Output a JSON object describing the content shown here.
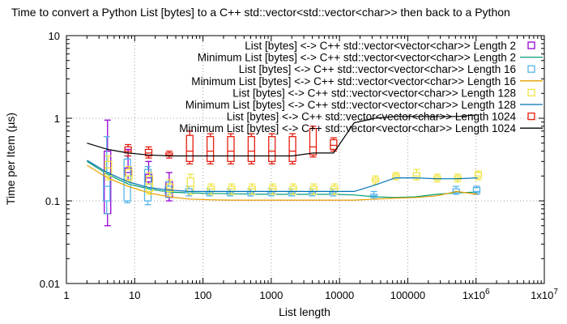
{
  "chart_data": {
    "type": "line",
    "title": "Time to convert a Python List [bytes] to a C++ std::vector<std::vector<char>> then back to a Python",
    "xlabel": "List length",
    "ylabel": "Time per Item (µs)",
    "xscale": "log",
    "yscale": "log",
    "xlim": [
      1,
      10000000
    ],
    "ylim": [
      0.01,
      10
    ],
    "x_ticks": [
      {
        "value": 1,
        "label": "1"
      },
      {
        "value": 10,
        "label": "10"
      },
      {
        "value": 100,
        "label": "100"
      },
      {
        "value": 1000,
        "label": "1000"
      },
      {
        "value": 10000,
        "label": "10000"
      },
      {
        "value": 100000,
        "label": "100000"
      },
      {
        "value": 1000000,
        "label": "1x10^6",
        "base": "1x10",
        "exp": "6"
      },
      {
        "value": 10000000,
        "label": "1x10^7",
        "base": "1x10",
        "exp": "7"
      }
    ],
    "y_ticks": [
      {
        "value": 0.01,
        "label": "0.01"
      },
      {
        "value": 0.1,
        "label": "0.1"
      },
      {
        "value": 1,
        "label": "1"
      },
      {
        "value": 10,
        "label": "10"
      }
    ],
    "grid": true,
    "legend_position": "top-right",
    "series": [
      {
        "name": "List [bytes] <-> C++ std::vector<vector<char>> Length 2",
        "kind": "box",
        "color": "#9400d3",
        "x": [
          4,
          8,
          16,
          32
        ],
        "q1": [
          0.07,
          0.2,
          0.17,
          0.11
        ],
        "q3": [
          0.4,
          0.25,
          0.21,
          0.17
        ],
        "low": [
          0.05,
          0.18,
          0.16,
          0.1
        ],
        "high": [
          0.95,
          0.42,
          0.3,
          0.22
        ],
        "median": [
          0.25,
          0.22,
          0.19,
          0.14
        ]
      },
      {
        "name": "Minimum List [bytes] <-> C++ std::vector<vector<char>> Length 2",
        "kind": "line",
        "color": "#009e73",
        "x": [
          2,
          4,
          8,
          16,
          32,
          64,
          128,
          256,
          512,
          1024,
          2048,
          4096,
          8192,
          16384,
          32768,
          65536,
          131072,
          262144,
          524288,
          1048576
        ],
        "y": [
          0.3,
          0.21,
          0.16,
          0.14,
          0.128,
          0.125,
          0.123,
          0.122,
          0.121,
          0.12,
          0.12,
          0.12,
          0.12,
          0.118,
          0.112,
          0.11,
          0.112,
          0.12,
          0.125,
          0.128
        ]
      },
      {
        "name": "List [bytes] <-> C++ std::vector<vector<char>> Length 16",
        "kind": "box",
        "color": "#56b4e9",
        "x": [
          4,
          8,
          16,
          32,
          64,
          128,
          256,
          512,
          1024,
          2048,
          4096,
          8192,
          32768,
          524288,
          1048576
        ],
        "q1": [
          0.1,
          0.1,
          0.1,
          0.12,
          0.125,
          0.12,
          0.12,
          0.12,
          0.12,
          0.12,
          0.12,
          0.12,
          0.11,
          0.125,
          0.125
        ],
        "q3": [
          0.22,
          0.32,
          0.24,
          0.15,
          0.14,
          0.13,
          0.13,
          0.13,
          0.13,
          0.13,
          0.13,
          0.13,
          0.12,
          0.14,
          0.145
        ],
        "low": [
          0.07,
          0.095,
          0.09,
          0.11,
          0.115,
          0.115,
          0.115,
          0.115,
          0.115,
          0.115,
          0.115,
          0.115,
          0.105,
          0.12,
          0.12
        ],
        "high": [
          0.6,
          0.35,
          0.26,
          0.17,
          0.15,
          0.14,
          0.14,
          0.14,
          0.14,
          0.14,
          0.14,
          0.14,
          0.13,
          0.15,
          0.15
        ],
        "median": [
          0.15,
          0.2,
          0.16,
          0.135,
          0.13,
          0.125,
          0.125,
          0.125,
          0.125,
          0.125,
          0.125,
          0.125,
          0.115,
          0.13,
          0.13
        ]
      },
      {
        "name": "Minimum List [bytes] <-> C++ std::vector<vector<char>> Length 16",
        "kind": "line",
        "color": "#e69f00",
        "x": [
          2,
          4,
          8,
          16,
          32,
          64,
          128,
          256,
          512,
          1024,
          2048,
          4096,
          8192,
          16384,
          32768,
          65536,
          131072,
          262144,
          524288,
          1048576
        ],
        "y": [
          0.27,
          0.19,
          0.15,
          0.125,
          0.112,
          0.105,
          0.103,
          0.102,
          0.102,
          0.102,
          0.102,
          0.102,
          0.102,
          0.102,
          0.105,
          0.108,
          0.11,
          0.115,
          0.13,
          0.12
        ]
      },
      {
        "name": "List [bytes] <-> C++ std::vector<vector<char>> Length 128",
        "kind": "box",
        "color": "#f0e442",
        "x": [
          4,
          8,
          16,
          32,
          64,
          128,
          256,
          512,
          1024,
          2048,
          4096,
          8192,
          32768,
          65536,
          131072,
          262144,
          524288,
          1048576
        ],
        "q1": [
          0.2,
          0.18,
          0.13,
          0.13,
          0.13,
          0.13,
          0.13,
          0.13,
          0.13,
          0.13,
          0.13,
          0.13,
          0.17,
          0.19,
          0.19,
          0.18,
          0.18,
          0.19
        ],
        "q3": [
          0.3,
          0.24,
          0.2,
          0.16,
          0.19,
          0.15,
          0.15,
          0.15,
          0.15,
          0.15,
          0.15,
          0.15,
          0.19,
          0.21,
          0.22,
          0.2,
          0.2,
          0.22
        ],
        "low": [
          0.18,
          0.17,
          0.12,
          0.12,
          0.12,
          0.12,
          0.12,
          0.12,
          0.12,
          0.12,
          0.12,
          0.12,
          0.16,
          0.18,
          0.18,
          0.17,
          0.17,
          0.18
        ],
        "high": [
          0.35,
          0.26,
          0.22,
          0.18,
          0.21,
          0.16,
          0.16,
          0.16,
          0.16,
          0.16,
          0.16,
          0.16,
          0.2,
          0.22,
          0.24,
          0.21,
          0.21,
          0.23
        ],
        "median": [
          0.25,
          0.2,
          0.16,
          0.14,
          0.15,
          0.14,
          0.14,
          0.14,
          0.14,
          0.14,
          0.14,
          0.14,
          0.18,
          0.2,
          0.2,
          0.19,
          0.19,
          0.2
        ]
      },
      {
        "name": "Minimum List [bytes] <-> C++ std::vector<vector<char>> Length 128",
        "kind": "line",
        "color": "#0072b2",
        "x": [
          2,
          4,
          8,
          16,
          32,
          64,
          128,
          256,
          512,
          1024,
          2048,
          4096,
          8192,
          16384,
          32768,
          65536,
          131072,
          262144,
          524288,
          1048576
        ],
        "y": [
          0.31,
          0.22,
          0.17,
          0.145,
          0.135,
          0.13,
          0.13,
          0.13,
          0.13,
          0.13,
          0.13,
          0.13,
          0.13,
          0.13,
          0.155,
          0.19,
          0.19,
          0.185,
          0.185,
          0.19
        ]
      },
      {
        "name": "List [bytes] <-> C++ std::vector<vector<char>> Length 1024",
        "kind": "box",
        "color": "#e51e10",
        "x": [
          8,
          16,
          32,
          64,
          128,
          256,
          512,
          1024,
          2048,
          4096,
          8192
        ],
        "q1": [
          0.38,
          0.35,
          0.35,
          0.3,
          0.3,
          0.3,
          0.3,
          0.3,
          0.3,
          0.36,
          0.42
        ],
        "q3": [
          0.45,
          0.42,
          0.38,
          0.62,
          0.6,
          0.6,
          0.6,
          0.6,
          0.6,
          0.75,
          0.55
        ],
        "low": [
          0.35,
          0.33,
          0.33,
          0.28,
          0.28,
          0.28,
          0.28,
          0.28,
          0.28,
          0.34,
          0.4
        ],
        "high": [
          0.48,
          0.45,
          0.4,
          0.7,
          0.65,
          0.65,
          0.65,
          0.65,
          0.65,
          0.8,
          0.58
        ],
        "median": [
          0.4,
          0.38,
          0.36,
          0.4,
          0.4,
          0.4,
          0.4,
          0.4,
          0.4,
          0.45,
          0.47
        ]
      },
      {
        "name": "Minimum List [bytes] <-> C++ std::vector<vector<char>> Length 1024",
        "kind": "line",
        "color": "#000000",
        "x": [
          2,
          4,
          8,
          16,
          32,
          64,
          128,
          256,
          512,
          1024,
          2048,
          4096,
          8192,
          16384,
          32768,
          65536,
          131072,
          262144,
          524288,
          1048576
        ],
        "y": [
          0.5,
          0.42,
          0.38,
          0.36,
          0.35,
          0.35,
          0.35,
          0.35,
          0.35,
          0.35,
          0.35,
          0.38,
          0.38,
          0.88,
          1.0,
          1.05,
          1.05,
          1.05,
          1.05,
          1.1
        ]
      }
    ]
  }
}
